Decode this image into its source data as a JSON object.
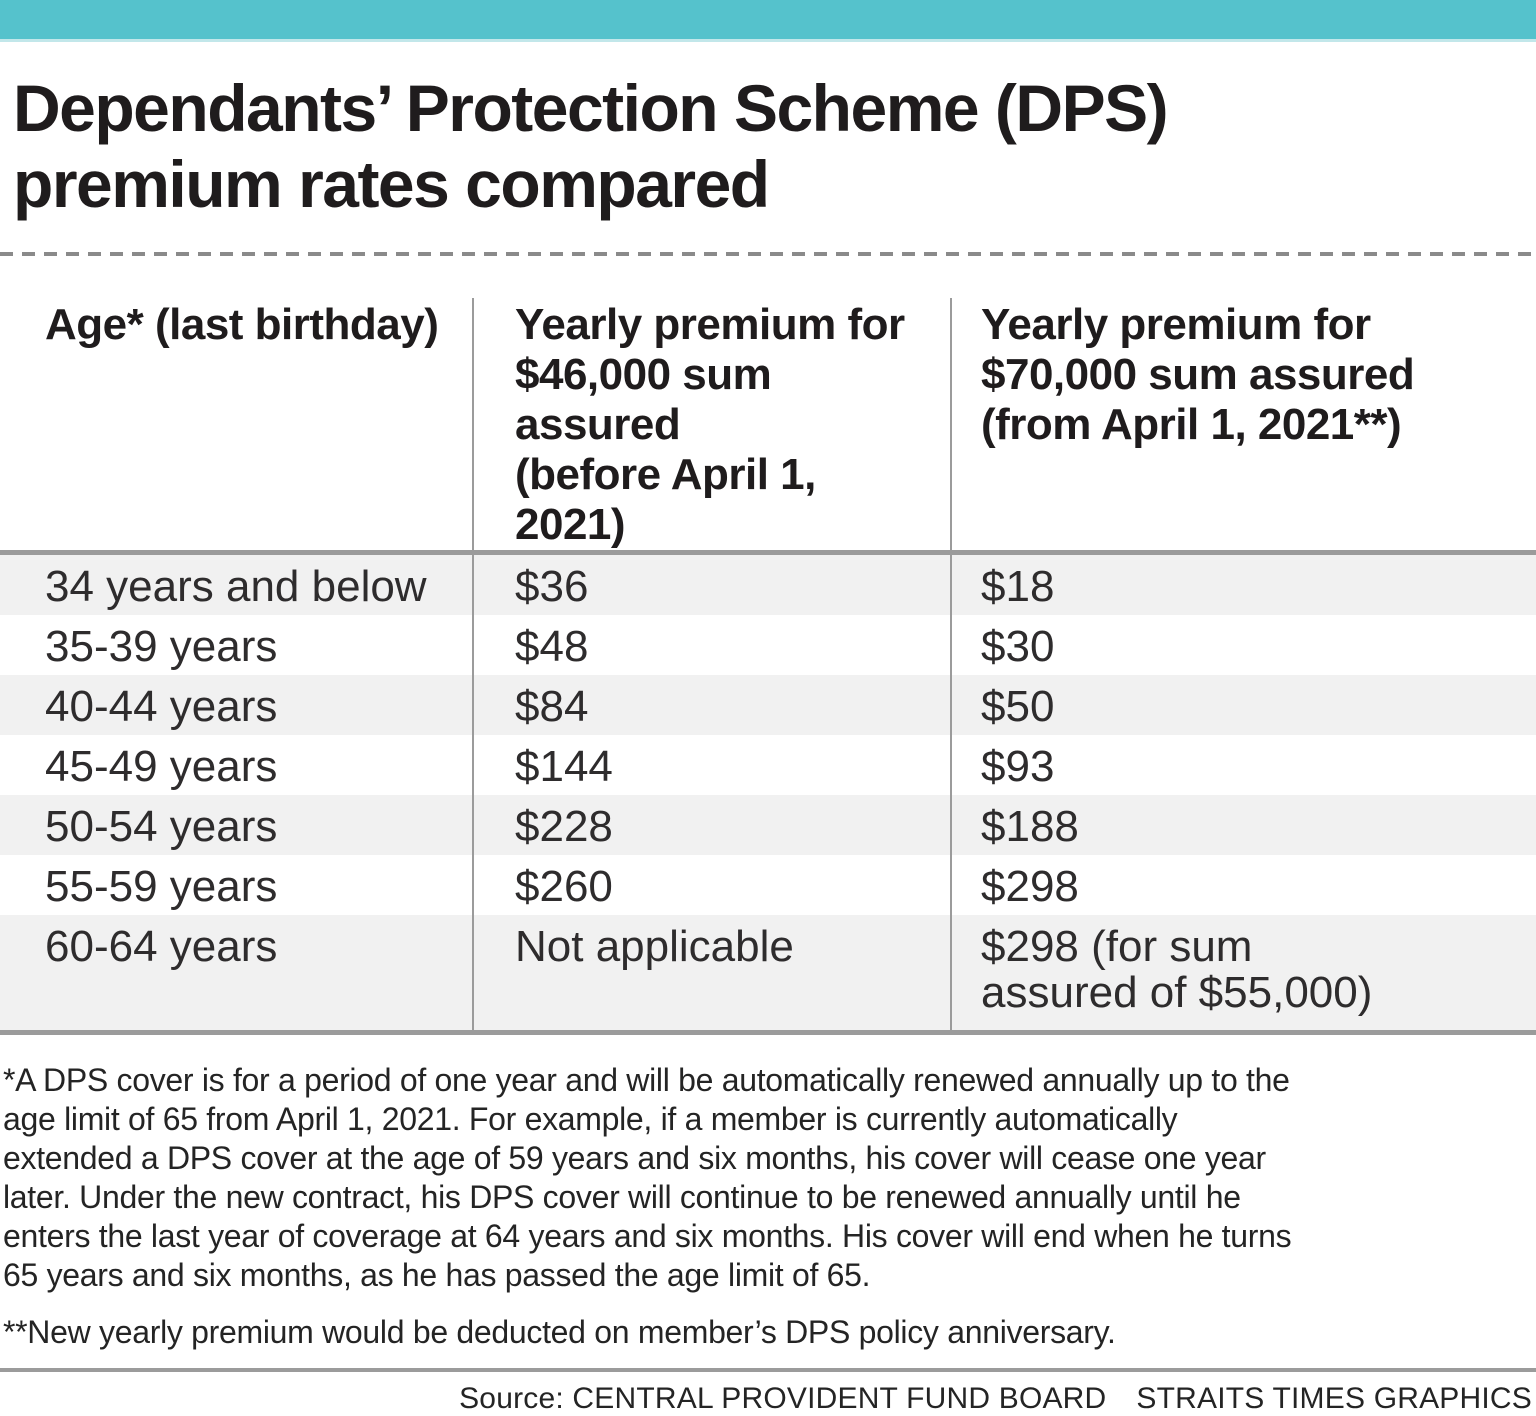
{
  "colors": {
    "accent_teal": "#55c2cc",
    "accent_teal_light": "#c2e7ea",
    "rule_gray": "#9b9b9b",
    "dash_gray": "#8a8a8a",
    "stripe_gray": "#f1f1f1",
    "text_dark": "#1f1c1d"
  },
  "title": "Dependants’ Protection Scheme (DPS)\npremium rates compared",
  "chart_data": {
    "type": "table",
    "title": "Dependants’ Protection Scheme (DPS) premium rates compared",
    "columns": [
      "Age* (last birthday)",
      "Yearly premium for $46,000 sum assured (before April 1, 2021)",
      "Yearly premium for $70,000 sum assured (from April 1, 2021**)"
    ],
    "rows": [
      [
        "34 years and below",
        "$36",
        "$18"
      ],
      [
        "35-39 years",
        "$48",
        "$30"
      ],
      [
        "40-44 years",
        "$84",
        "$50"
      ],
      [
        "45-49 years",
        "$144",
        "$93"
      ],
      [
        "50-54 years",
        "$228",
        "$188"
      ],
      [
        "55-59 years",
        "$260",
        "$298"
      ],
      [
        "60-64 years",
        "Not applicable",
        "$298 (for sum assured of $55,000)"
      ]
    ]
  },
  "table": {
    "columns": [
      "Age* (last birthday)",
      "Yearly premium for\n$46,000 sum assured\n(before April 1, 2021)",
      "Yearly premium for\n$70,000 sum assured\n(from April 1, 2021**)"
    ],
    "rows": [
      [
        "34 years and below",
        "$36",
        "$18"
      ],
      [
        "35-39 years",
        "$48",
        "$30"
      ],
      [
        "40-44 years",
        "$84",
        "$50"
      ],
      [
        "45-49 years",
        "$144",
        "$93"
      ],
      [
        "50-54 years",
        "$228",
        "$188"
      ],
      [
        "55-59 years",
        "$260",
        "$298"
      ],
      [
        "60-64 years",
        "Not applicable",
        "$298 (for sum\nassured of $55,000)"
      ]
    ]
  },
  "footnotes": [
    "*A DPS cover is for a period of one year and will be automatically renewed annually up to the\nage limit of 65 from April 1, 2021. For example, if a member is currently automatically\nextended a DPS cover at the age of 59 years and six months, his cover will cease one year\nlater. Under the new contract, his DPS cover will continue to be renewed annually until he\nenters the last year of coverage at 64 years and six months. His cover will end when he turns\n65 years and six months, as he has passed the age limit of 65.",
    "**New yearly premium would be deducted on member’s DPS policy anniversary."
  ],
  "source": {
    "label": "Source: CENTRAL PROVIDENT FUND BOARD",
    "credit": "STRAITS TIMES GRAPHICS"
  }
}
